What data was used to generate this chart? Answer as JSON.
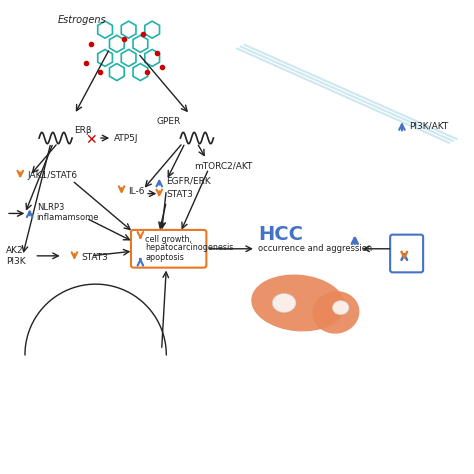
{
  "bg_color": "#ffffff",
  "title": "Estrogens",
  "labels": {
    "estrogens": "Estrogens",
    "ERb": "ERβ",
    "GPER": "GPER",
    "ATP5J": "ATP5J",
    "mTORC2_AKT": "mTORC2/AKT",
    "EGFR_ERK": "EGFR/ERK",
    "IL6": "IL-6",
    "STAT3_1": "STAT3",
    "JAK1_STAT6": "JAK1/STAT6",
    "NLRP3": "NLRP3\ninflamamsome",
    "AK2_PI3K": "AK2\nPI3K",
    "STAT3_2": "STAT3",
    "cell_box": "cell growth,\nhepatocarcinogenesis\napoptosis",
    "HCC": "HCC",
    "HCC_sub": "occurrence and aggression",
    "PI3K_AKT": "PI3K/AKT"
  },
  "colors": {
    "orange": "#E87722",
    "blue": "#4472C4",
    "red": "#CC0000",
    "black": "#222222",
    "teal": "#20B2AA",
    "light_blue": "#ADD8E6",
    "liver_orange": "#E8875A",
    "liver_light": "#F4A07A"
  }
}
